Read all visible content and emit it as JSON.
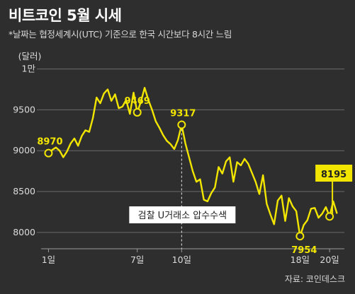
{
  "title": "비트코인 5월 시세",
  "subtitle": "*날짜는 협정세계시(UTC) 기준으로 한국 시간보다 8시간 느림",
  "source": "자료: 코인데스크",
  "colors": {
    "background": "#2e2e2e",
    "line": "#f2e600",
    "text": "#ffffff",
    "muted": "#d8d8d8"
  },
  "chart_data": {
    "type": "line",
    "ylabel": "(달러)",
    "ylim": [
      7800,
      10100
    ],
    "xlim": [
      0.5,
      21.0
    ],
    "y_ticks": [
      {
        "value": 8000,
        "label": "8000"
      },
      {
        "value": 8500,
        "label": "8500"
      },
      {
        "value": 9000,
        "label": "9000"
      },
      {
        "value": 9500,
        "label": "9500"
      },
      {
        "value": 10000,
        "label": "1만"
      }
    ],
    "x_ticks": [
      {
        "value": 1,
        "label": "1일"
      },
      {
        "value": 7,
        "label": "7일"
      },
      {
        "value": 10,
        "label": "10일"
      },
      {
        "value": 18,
        "label": "18일"
      },
      {
        "value": 20,
        "label": "20일"
      }
    ],
    "series": [
      {
        "x": [
          1.0,
          1.25,
          1.5,
          1.75,
          2.0,
          2.25,
          2.5,
          2.75,
          3.0,
          3.25,
          3.5,
          3.75,
          4.0,
          4.25,
          4.5,
          4.75,
          5.0,
          5.25,
          5.5,
          5.75,
          6.0,
          6.25,
          6.5,
          6.75,
          7.0,
          7.25,
          7.5,
          7.75,
          8.0,
          8.25,
          8.5,
          8.75,
          9.0,
          9.25,
          9.5,
          9.75,
          10.0,
          10.25,
          10.5,
          10.75,
          11.0,
          11.25,
          11.5,
          11.75,
          12.0,
          12.25,
          12.5,
          12.75,
          13.0,
          13.25,
          13.5,
          13.75,
          14.0,
          14.25,
          14.5,
          14.75,
          15.0,
          15.25,
          15.5,
          15.75,
          16.0,
          16.25,
          16.5,
          16.75,
          17.0,
          17.25,
          17.5,
          17.75,
          18.0,
          18.25,
          18.5,
          18.75,
          19.0,
          19.25,
          19.5,
          19.75,
          20.0,
          20.25,
          20.5
        ],
        "y": [
          8970,
          9010,
          9040,
          9000,
          8920,
          8990,
          9090,
          9150,
          9060,
          9180,
          9250,
          9230,
          9400,
          9650,
          9580,
          9700,
          9750,
          9610,
          9690,
          9520,
          9540,
          9620,
          9450,
          9710,
          9469,
          9600,
          9770,
          9620,
          9500,
          9360,
          9280,
          9190,
          9120,
          9080,
          9020,
          9130,
          9317,
          9090,
          8920,
          8750,
          8620,
          8650,
          8400,
          8380,
          8480,
          8550,
          8800,
          8720,
          8870,
          8920,
          8620,
          8860,
          8820,
          8900,
          8840,
          8730,
          8620,
          8470,
          8700,
          8350,
          8220,
          8100,
          8390,
          8450,
          8140,
          8420,
          8320,
          8260,
          7954,
          8090,
          8150,
          8290,
          8300,
          8180,
          8230,
          8310,
          8195,
          8380,
          8230
        ]
      }
    ],
    "annotations": [
      {
        "x": 1,
        "y": 8970,
        "label": "8970"
      },
      {
        "x": 7,
        "y": 9469,
        "label": "9469"
      },
      {
        "x": 10,
        "y": 9317,
        "label": "9317"
      },
      {
        "x": 18,
        "y": 7954,
        "label": "7954"
      },
      {
        "x": 20,
        "y": 8195,
        "label": "8195"
      }
    ],
    "event_line": {
      "x": 10,
      "label": "검찰 U거래소 압수수색"
    }
  }
}
